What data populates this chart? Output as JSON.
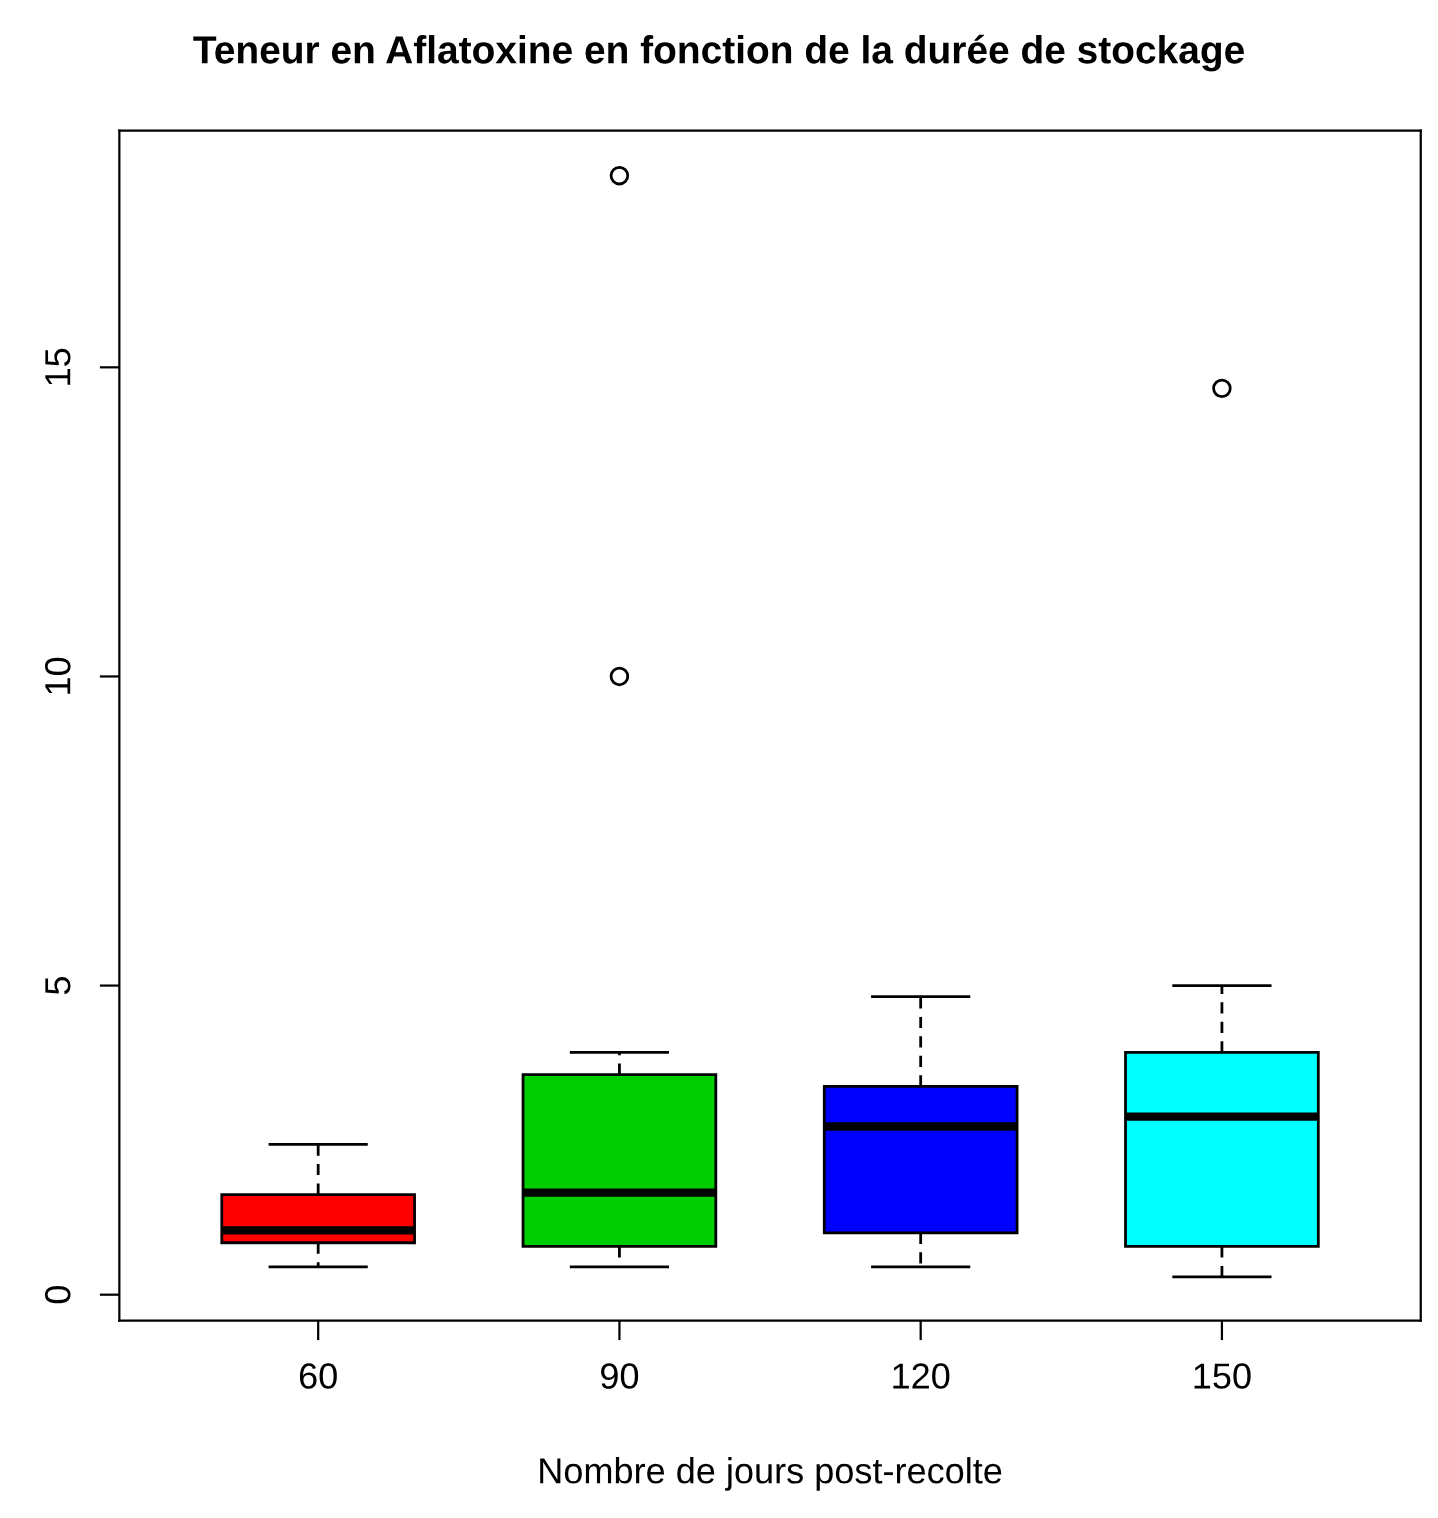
{
  "chart_data": {
    "type": "box",
    "title": "Teneur en Aflatoxine en fonction de la durée de stockage",
    "xlabel": "Nombre de jours post-recolte",
    "categories": [
      "60",
      "90",
      "120",
      "150"
    ],
    "boxes": [
      {
        "low": 0.45,
        "q1": 0.84,
        "median": 1.04,
        "q3": 1.62,
        "high": 2.43
      },
      {
        "low": 0.45,
        "q1": 0.78,
        "median": 1.65,
        "q3": 3.56,
        "high": 3.92,
        "outliers": [
          10.0,
          18.1
        ]
      },
      {
        "low": 0.45,
        "q1": 1.0,
        "median": 2.72,
        "q3": 3.37,
        "high": 4.82
      },
      {
        "low": 0.29,
        "q1": 0.78,
        "median": 2.88,
        "q3": 3.92,
        "high": 5.0,
        "outliers": [
          14.66
        ]
      }
    ],
    "colors": [
      "#ff0000",
      "#00cd00",
      "#0000ff",
      "#00ffff"
    ],
    "ylim": [
      -0.42,
      18.83
    ],
    "yticks": [
      0,
      5,
      10,
      15
    ],
    "grid": false,
    "legend": false
  }
}
